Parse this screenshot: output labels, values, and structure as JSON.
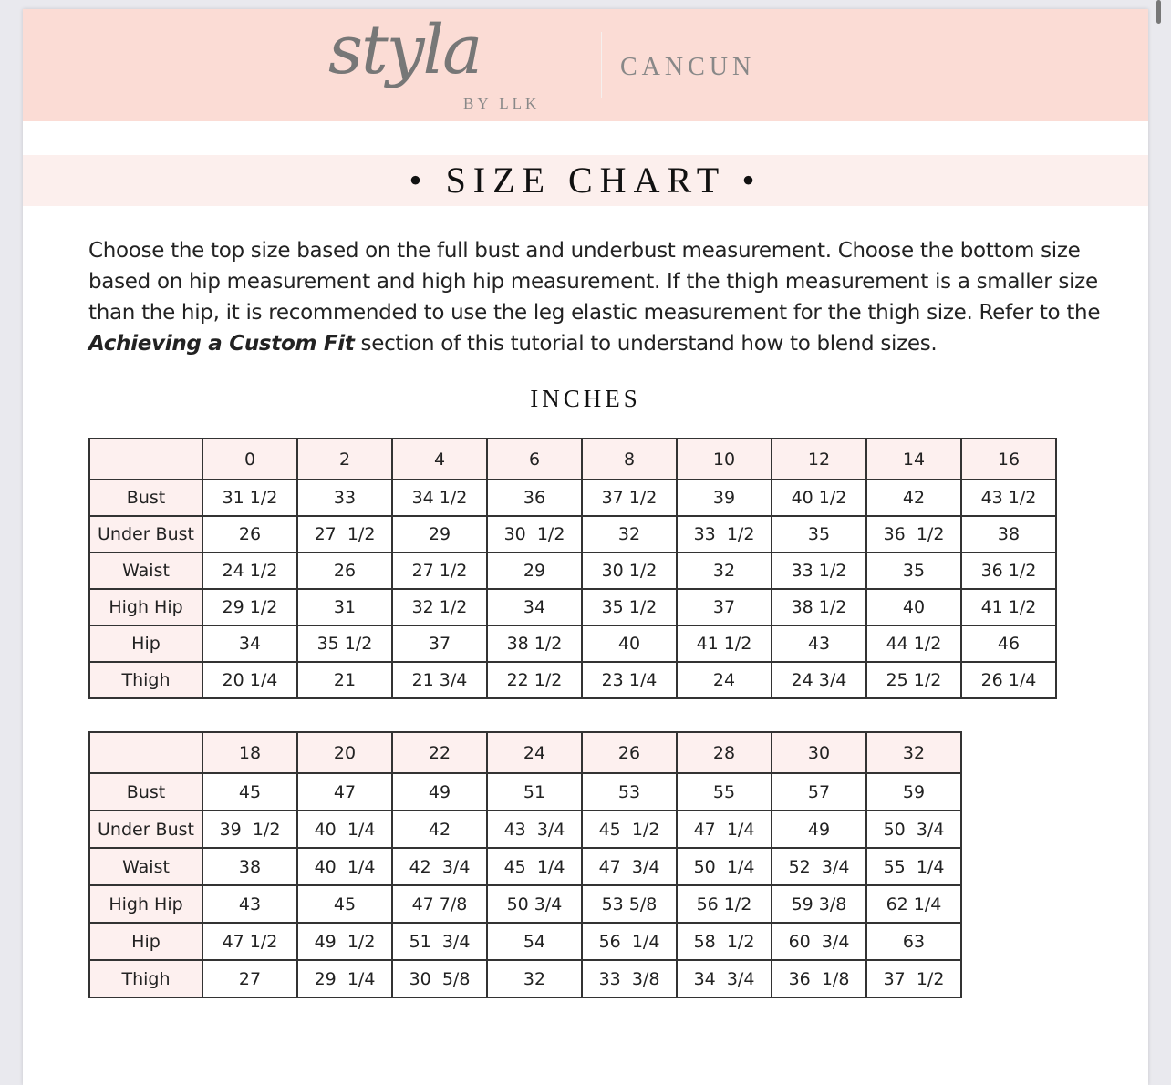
{
  "header": {
    "brand_logo": "styla",
    "brand_sub": "BY LLK",
    "pattern_name": "CANCUN",
    "bg_color": "#fbdcd5"
  },
  "title": "SIZE CHART",
  "intro": {
    "part1": "Choose the top size based on the full bust and underbust measurement. Choose the bottom size based on hip measurement and high hip measurement. If the thigh measurement is a smaller size than the hip, it is recommended to use the leg elastic measurement for the thigh size. Refer to the ",
    "emphasis": "Achieving a Custom Fit",
    "part2": " section of this tutorial to understand how to blend sizes."
  },
  "units": "INCHES",
  "table1": {
    "sizes": [
      "0",
      "2",
      "4",
      "6",
      "8",
      "10",
      "12",
      "14",
      "16"
    ],
    "rows": [
      {
        "label": "Bust",
        "values": [
          "31 1/2",
          "33",
          "34 1/2",
          "36",
          "37 1/2",
          "39",
          "40 1/2",
          "42",
          "43 1/2"
        ]
      },
      {
        "label": "Under Bust",
        "values": [
          "26",
          "27  1/2",
          "29",
          "30  1/2",
          "32",
          "33  1/2",
          "35",
          "36  1/2",
          "38"
        ]
      },
      {
        "label": "Waist",
        "values": [
          "24 1/2",
          "26",
          "27 1/2",
          "29",
          "30 1/2",
          "32",
          "33 1/2",
          "35",
          "36 1/2"
        ]
      },
      {
        "label": "High Hip",
        "values": [
          "29 1/2",
          "31",
          "32 1/2",
          "34",
          "35 1/2",
          "37",
          "38 1/2",
          "40",
          "41 1/2"
        ]
      },
      {
        "label": "Hip",
        "values": [
          "34",
          "35 1/2",
          "37",
          "38 1/2",
          "40",
          "41 1/2",
          "43",
          "44 1/2",
          "46"
        ]
      },
      {
        "label": "Thigh",
        "values": [
          "20 1/4",
          "21",
          "21 3/4",
          "22 1/2",
          "23 1/4",
          "24",
          "24 3/4",
          "25 1/2",
          "26 1/4"
        ]
      }
    ]
  },
  "table2": {
    "sizes": [
      "18",
      "20",
      "22",
      "24",
      "26",
      "28",
      "30",
      "32"
    ],
    "rows": [
      {
        "label": "Bust",
        "values": [
          "45",
          "47",
          "49",
          "51",
          "53",
          "55",
          "57",
          "59"
        ]
      },
      {
        "label": "Under Bust",
        "values": [
          "39  1/2",
          "40  1/4",
          "42",
          "43  3/4",
          "45  1/2",
          "47  1/4",
          "49",
          "50  3/4"
        ]
      },
      {
        "label": "Waist",
        "values": [
          "38",
          "40  1/4",
          "42  3/4",
          "45  1/4",
          "47  3/4",
          "50  1/4",
          "52  3/4",
          "55  1/4"
        ]
      },
      {
        "label": "High Hip",
        "values": [
          "43",
          "45",
          "47 7/8",
          "50 3/4",
          "53 5/8",
          "56 1/2",
          "59 3/8",
          "62 1/4"
        ]
      },
      {
        "label": "Hip",
        "values": [
          "47 1/2",
          "49  1/2",
          "51  3/4",
          "54",
          "56  1/4",
          "58  1/2",
          "60  3/4",
          "63"
        ]
      },
      {
        "label": "Thigh",
        "values": [
          "27",
          "29  1/4",
          "30  5/8",
          "32",
          "33  3/8",
          "34  3/4",
          "36  1/8",
          "37  1/2"
        ]
      }
    ]
  }
}
